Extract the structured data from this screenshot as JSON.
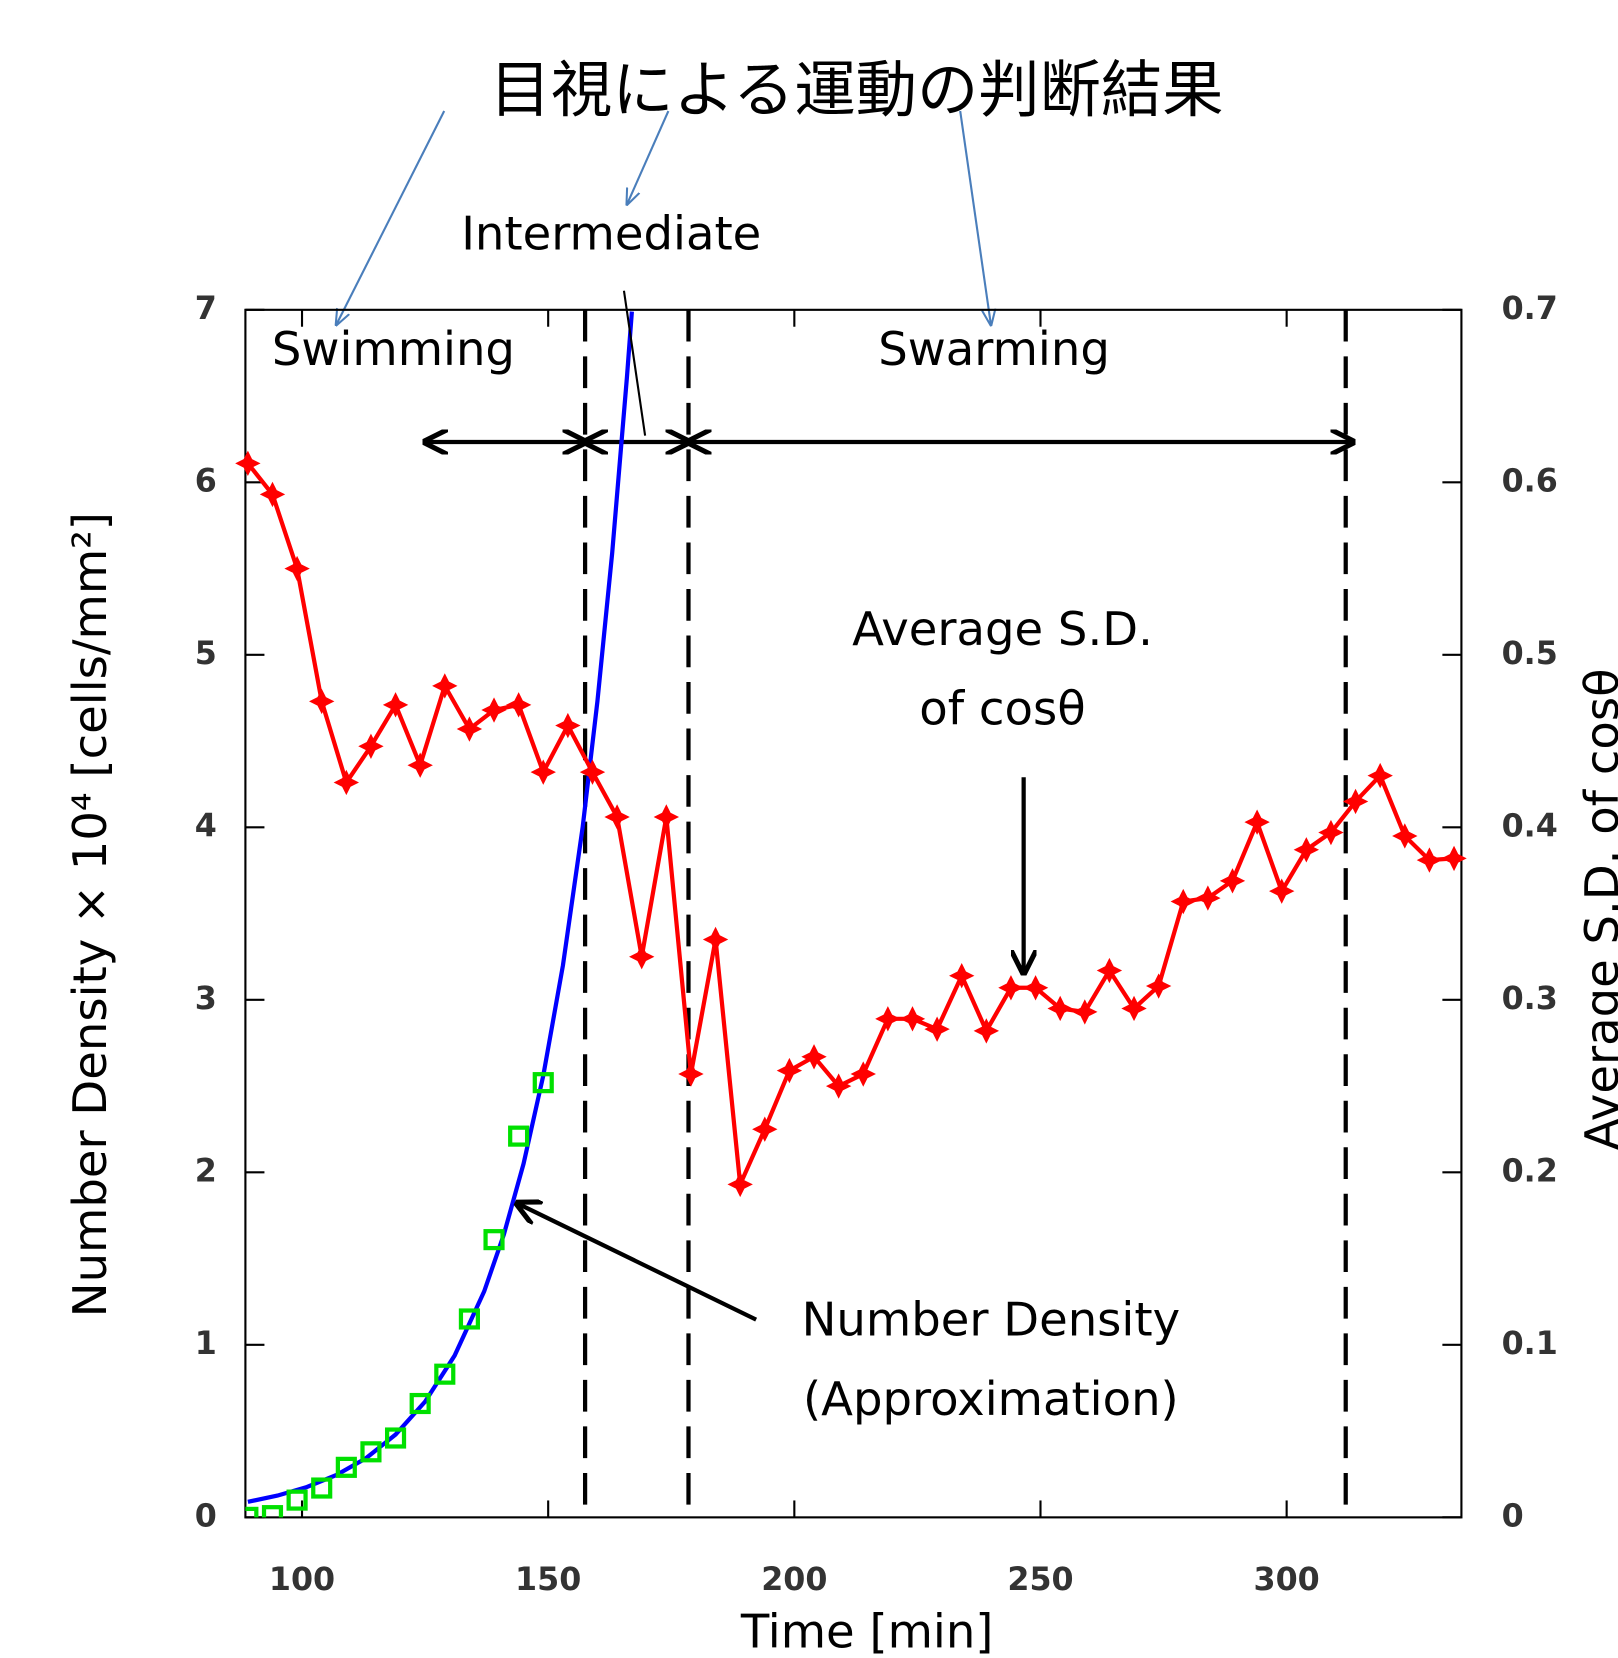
{
  "chart_data": {
    "type": "line",
    "title": "目視による運動の判断結果",
    "xlabel": "Time [min]",
    "ylabel": "Number Density × 10⁴ [cells/mm²]",
    "y2label": "Average S.D. of cosθ",
    "phases": [
      "Swimming",
      "Intermediate",
      "Swarming"
    ],
    "phase_spans": [
      [
        125,
        157.5
      ],
      [
        157.5,
        178.5
      ],
      [
        178.5,
        313.5
      ]
    ],
    "vlines": [
      157.5,
      178.5,
      312
    ],
    "annotations": [
      [
        "Average S.D.",
        "of cosθ"
      ],
      [
        "Number Density",
        "(Approximation)"
      ]
    ],
    "xlim": [
      88.5,
      335.5
    ],
    "xticks": [
      100,
      150,
      200,
      250,
      300
    ],
    "ylim": [
      0,
      7
    ],
    "yticks": [
      0,
      1,
      2,
      3,
      4,
      5,
      6,
      7
    ],
    "y2lim": [
      0,
      0.7
    ],
    "y2ticks": [
      0,
      0.1,
      0.2,
      0.3,
      0.4,
      0.5,
      0.6,
      0.7
    ],
    "grid": false,
    "series": [
      {
        "color": "#00e000",
        "marker": "square",
        "line": false,
        "x": [
          89,
          94,
          99,
          104,
          109,
          114,
          119,
          124,
          129,
          134,
          139,
          144,
          149
        ],
        "values": [
          0.0,
          0.01,
          0.1,
          0.17,
          0.29,
          0.38,
          0.46,
          0.66,
          0.83,
          1.15,
          1.61,
          2.21,
          2.52
        ]
      },
      {
        "color": "#0000ff",
        "marker": "none",
        "line": true,
        "x": [
          89,
          95,
          101,
          107,
          113,
          119,
          125,
          131,
          137,
          141,
          145,
          149,
          153,
          157,
          160,
          163,
          166,
          167
        ],
        "values": [
          0.09,
          0.126,
          0.176,
          0.246,
          0.343,
          0.48,
          0.671,
          0.938,
          1.31,
          1.64,
          2.05,
          2.56,
          3.2,
          4.0,
          4.73,
          5.59,
          6.61,
          6.99
        ]
      },
      {
        "color": "#ff0000",
        "marker": "cross",
        "line": true,
        "axis": "y2",
        "x": [
          89,
          94,
          99,
          104,
          109,
          114,
          119,
          124,
          129,
          134,
          139,
          144,
          149,
          154,
          159,
          164,
          169,
          174,
          179,
          184,
          189,
          194,
          199,
          204,
          209,
          214,
          219,
          224,
          229,
          234,
          239,
          244,
          249,
          254,
          259,
          264,
          269,
          274,
          279,
          284,
          289,
          294,
          299,
          304,
          309,
          314,
          319,
          324,
          329,
          334
        ],
        "values": [
          0.611,
          0.593,
          0.55,
          0.473,
          0.426,
          0.447,
          0.471,
          0.436,
          0.482,
          0.457,
          0.468,
          0.471,
          0.432,
          0.459,
          0.432,
          0.406,
          0.325,
          0.406,
          0.257,
          0.335,
          0.193,
          0.225,
          0.259,
          0.267,
          0.25,
          0.257,
          0.289,
          0.289,
          0.283,
          0.314,
          0.282,
          0.307,
          0.307,
          0.295,
          0.293,
          0.317,
          0.295,
          0.308,
          0.357,
          0.359,
          0.369,
          0.403,
          0.363,
          0.387,
          0.397,
          0.415,
          0.43,
          0.395,
          0.381,
          0.382
        ]
      }
    ]
  }
}
